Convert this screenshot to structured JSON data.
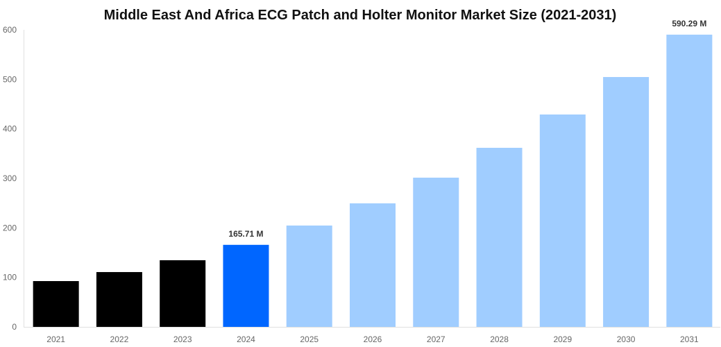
{
  "chart_data": {
    "type": "bar",
    "title": "Middle East And Africa ECG Patch and Holter Monitor Market Size (2021-2031)",
    "xlabel": "",
    "ylabel": "",
    "ylim": [
      0,
      600
    ],
    "yticks": [
      0,
      100,
      200,
      300,
      400,
      500,
      600
    ],
    "grid": false,
    "categories": [
      "2021",
      "2022",
      "2023",
      "2024",
      "2025",
      "2026",
      "2027",
      "2028",
      "2029",
      "2030",
      "2031"
    ],
    "values": [
      92.5,
      110.7,
      134.6,
      165.71,
      204.7,
      249.5,
      301.4,
      361.7,
      429.0,
      504.7,
      590.29
    ],
    "colors": [
      "#000000",
      "#000000",
      "#000000",
      "#0066ff",
      "#a0cdff",
      "#a0cdff",
      "#a0cdff",
      "#a0cdff",
      "#a0cdff",
      "#a0cdff",
      "#a0cdff"
    ],
    "data_labels": [
      {
        "index": 3,
        "text": "165.71 M"
      },
      {
        "index": 10,
        "text": "590.29 M"
      }
    ]
  }
}
